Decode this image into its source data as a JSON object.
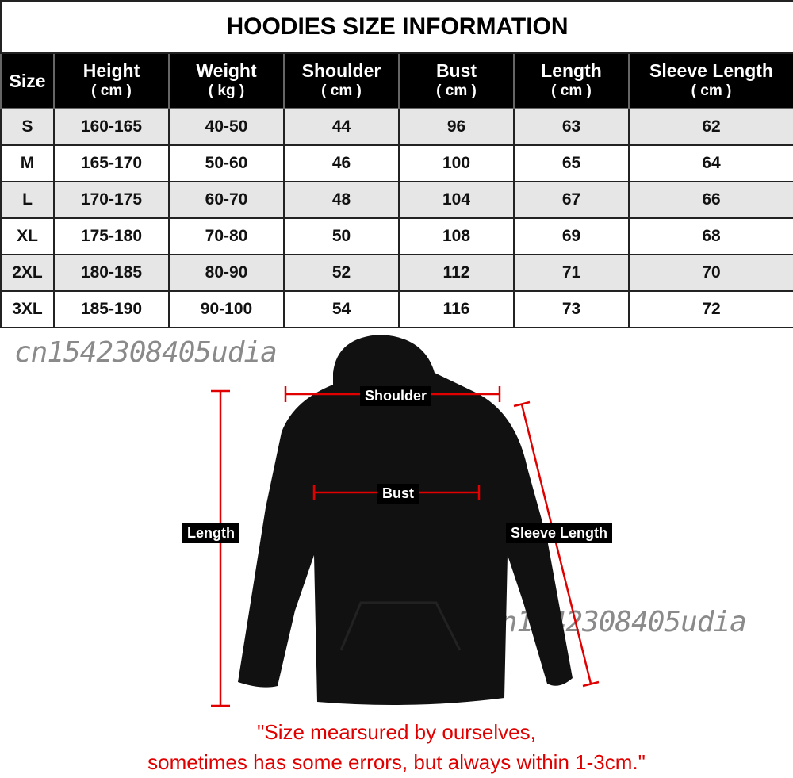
{
  "title": "HOODIES SIZE INFORMATION",
  "columns": [
    {
      "name": "Size",
      "unit": ""
    },
    {
      "name": "Height",
      "unit": "( cm )"
    },
    {
      "name": "Weight",
      "unit": "( kg )"
    },
    {
      "name": "Shoulder",
      "unit": "( cm )"
    },
    {
      "name": "Bust",
      "unit": "( cm )"
    },
    {
      "name": "Length",
      "unit": "( cm )"
    },
    {
      "name": "Sleeve Length",
      "unit": "( cm )"
    }
  ],
  "rows": [
    [
      "S",
      "160-165",
      "40-50",
      "44",
      "96",
      "63",
      "62"
    ],
    [
      "M",
      "165-170",
      "50-60",
      "46",
      "100",
      "65",
      "64"
    ],
    [
      "L",
      "170-175",
      "60-70",
      "48",
      "104",
      "67",
      "66"
    ],
    [
      "XL",
      "175-180",
      "70-80",
      "50",
      "108",
      "69",
      "68"
    ],
    [
      "2XL",
      "180-185",
      "80-90",
      "52",
      "112",
      "71",
      "70"
    ],
    [
      "3XL",
      "185-190",
      "90-100",
      "54",
      "116",
      "73",
      "72"
    ]
  ],
  "watermark": "cn1542308405udia",
  "diagram_labels": {
    "shoulder": "Shoulder",
    "bust": "Bust",
    "length": "Length",
    "sleeve": "Sleeve Length"
  },
  "note": {
    "line1": "\"Size mearsured by ourselves,",
    "line2": "sometimes has some errors, but always within 1-3cm.\""
  },
  "colors": {
    "header_bg": "#000000",
    "odd_row": "#e6e6e6",
    "measure_line": "#e00000",
    "note": "#e00000",
    "hoodie": "#111111"
  }
}
